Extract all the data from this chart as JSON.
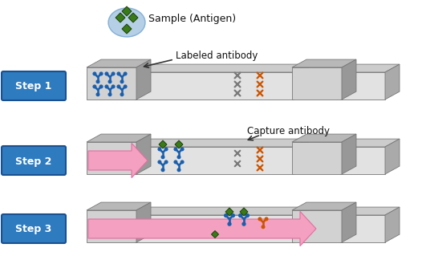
{
  "bg_color": "#ffffff",
  "step_labels": [
    "Step 1",
    "Step 2",
    "Step 3"
  ],
  "step_box_color": "#2e7bbf",
  "step_text_color": "#ffffff",
  "label_sample": "Sample (Antigen)",
  "label_labeled": "Labeled antibody",
  "label_capture": "Capture antibody",
  "strip_top_color": "#cccccc",
  "strip_face_color": "#e2e2e2",
  "strip_side_color": "#aaaaaa",
  "pad_top_color": "#b8b8b8",
  "pad_face_color": "#d2d2d2",
  "pad_side_color": "#989898",
  "arrow_color": "#f4a0c0",
  "arrow_edge_color": "#e070a0",
  "antibody_blue": "#1a5fad",
  "antibody_gray": "#787878",
  "antibody_orange": "#cc5500",
  "antigen_green": "#3a7a18",
  "antigen_circle_color": "#9ab8d8",
  "font_color": "#111111"
}
